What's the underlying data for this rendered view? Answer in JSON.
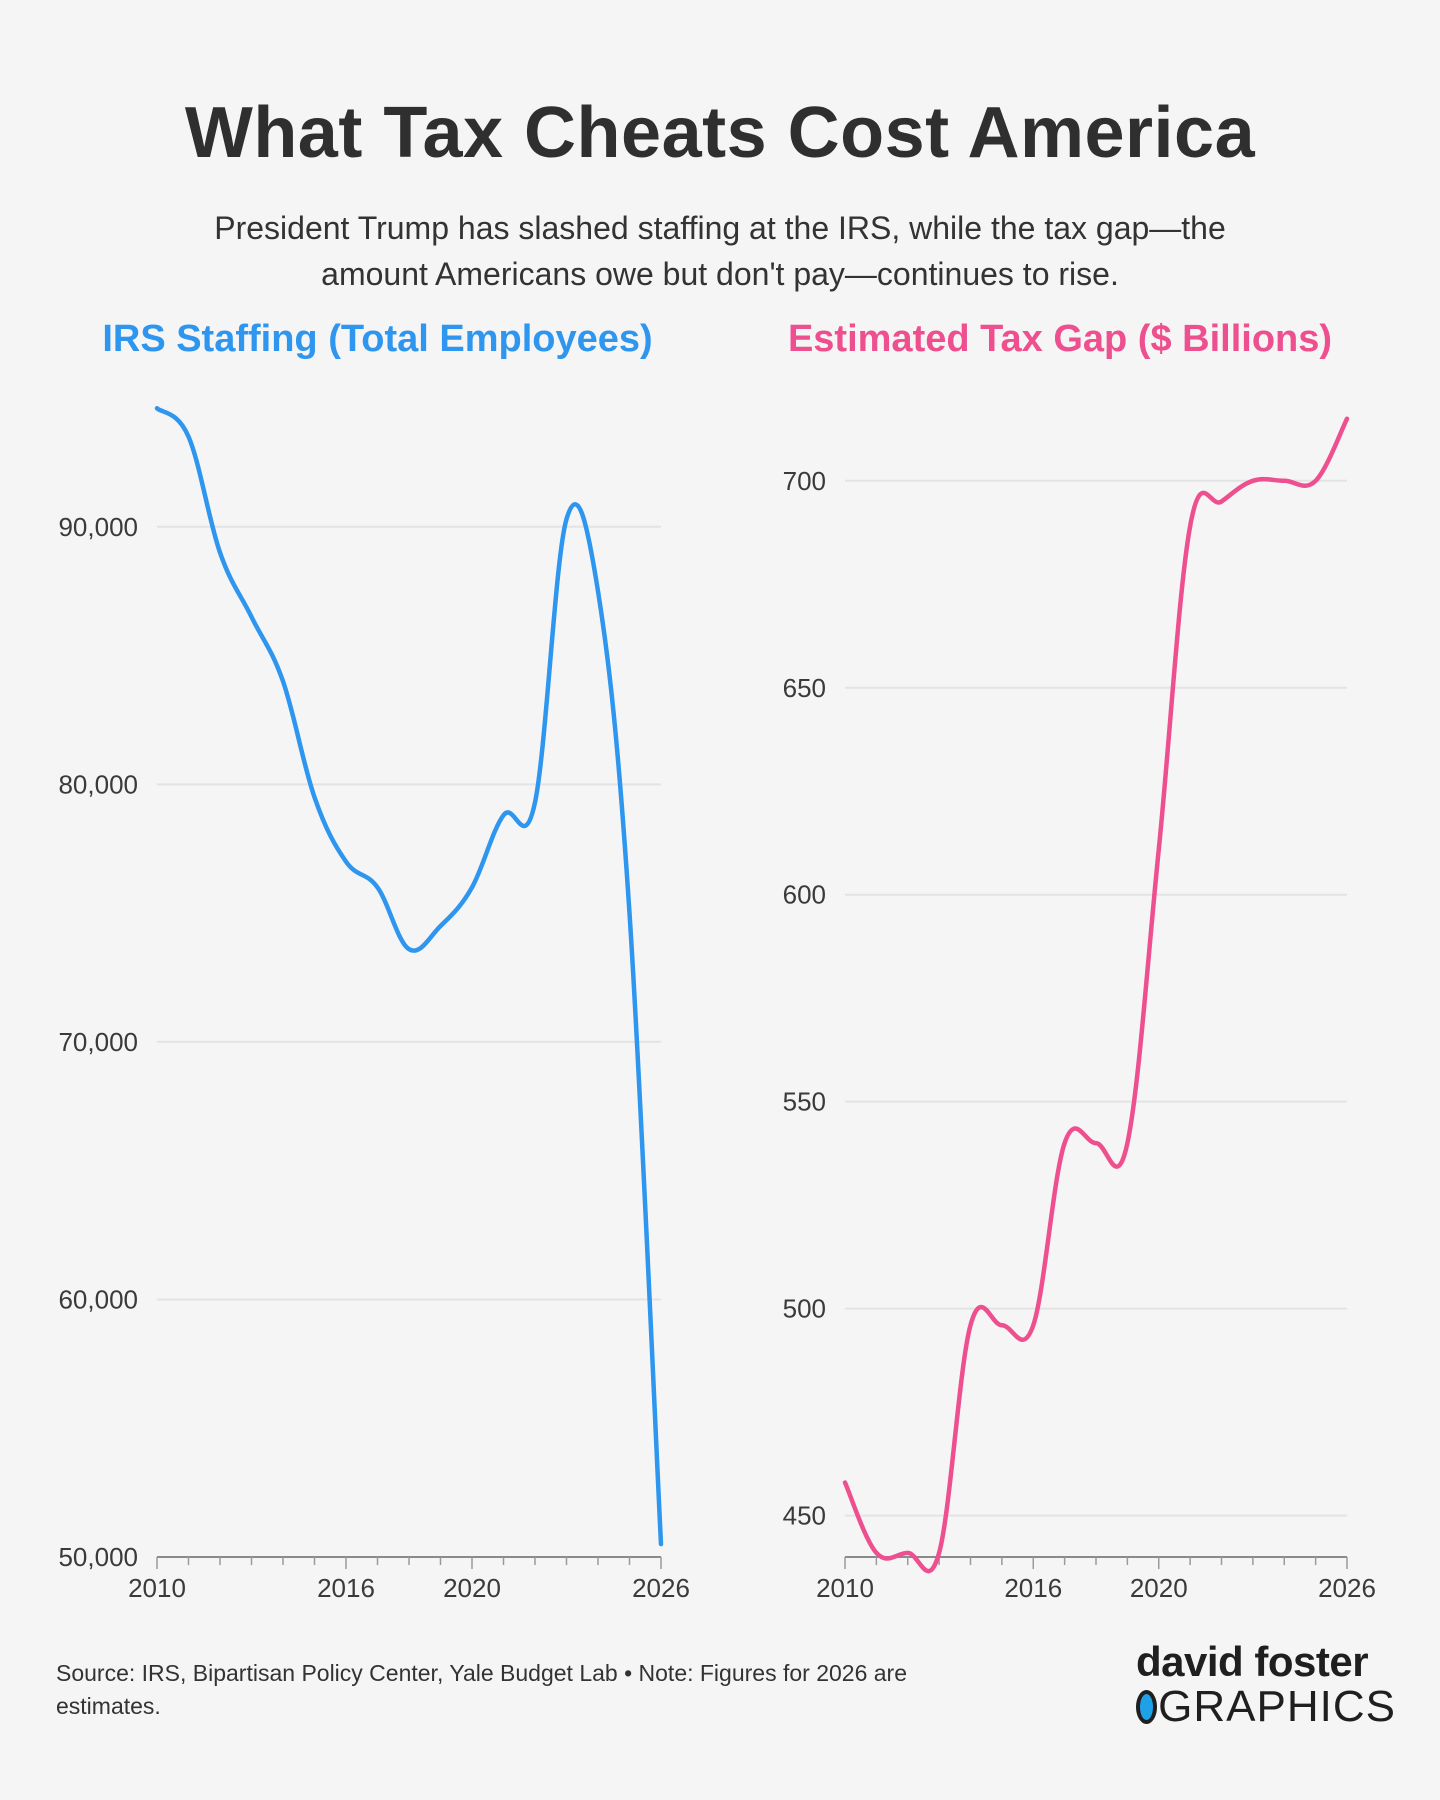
{
  "header": {
    "title": "What Tax Cheats Cost America",
    "subtitle": "President Trump has slashed staffing at the IRS, while the tax gap—the amount Americans owe but don't pay—continues to rise."
  },
  "chart_data": [
    {
      "type": "line",
      "title": "IRS Staffing (Total Employees)",
      "color": "#2e96ee",
      "xlabel": "",
      "ylabel": "",
      "xlim": [
        2010,
        2026
      ],
      "ylim": [
        50000,
        95000
      ],
      "x_ticks": [
        2010,
        2016,
        2020,
        2026
      ],
      "y_ticks": [
        50000,
        60000,
        70000,
        80000,
        90000
      ],
      "y_tick_labels": [
        "50,000",
        "60,000",
        "70,000",
        "80,000",
        "90,000"
      ],
      "grid": true,
      "x": [
        2010,
        2011,
        2012,
        2013,
        2014,
        2015,
        2016,
        2017,
        2018,
        2019,
        2020,
        2021,
        2022,
        2023,
        2024,
        2025,
        2026
      ],
      "values": [
        94600,
        93500,
        89000,
        86500,
        84000,
        79500,
        77000,
        76000,
        73600,
        74500,
        76000,
        78800,
        79300,
        90300,
        87500,
        75000,
        50500
      ]
    },
    {
      "type": "line",
      "title": "Estimated Tax Gap ($ Billions)",
      "color": "#ee4f8e",
      "xlabel": "",
      "ylabel": "",
      "xlim": [
        2010,
        2026
      ],
      "ylim": [
        440,
        720
      ],
      "x_ticks": [
        2010,
        2016,
        2020,
        2026
      ],
      "y_ticks": [
        450,
        500,
        550,
        600,
        650,
        700
      ],
      "y_tick_labels": [
        "450",
        "500",
        "550",
        "600",
        "650",
        "700"
      ],
      "grid": true,
      "x": [
        2010,
        2011,
        2012,
        2013,
        2014,
        2015,
        2016,
        2017,
        2018,
        2019,
        2020,
        2021,
        2022,
        2023,
        2024,
        2025,
        2026
      ],
      "values": [
        458,
        441,
        441,
        441,
        496,
        496,
        496,
        540,
        540,
        540,
        611,
        689,
        695,
        700,
        700,
        700,
        715
      ]
    }
  ],
  "footer": {
    "source": "Source: IRS, Bipartisan Policy Center, Yale Budget Lab • Note: Figures for 2026 are estimates."
  },
  "logo": {
    "line1": "david foster",
    "line2": "GRAPHICS"
  }
}
